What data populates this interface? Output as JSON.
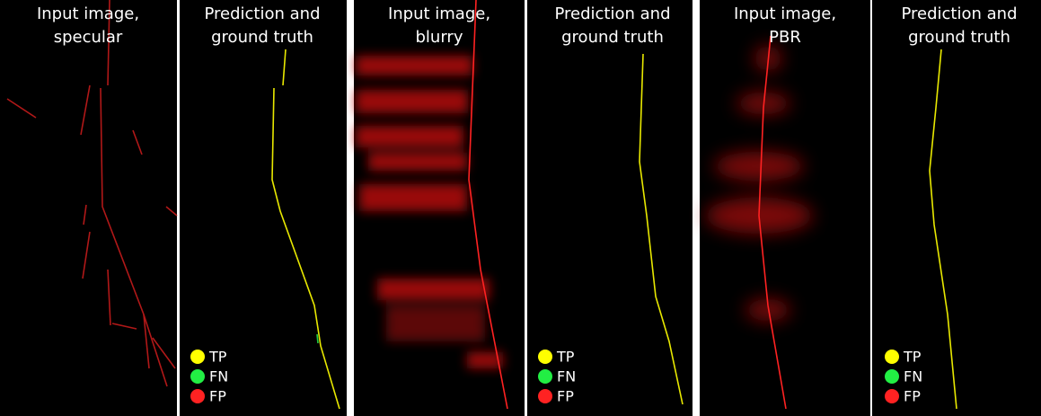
{
  "panels": [
    {
      "title": [
        "Input image,",
        "specular"
      ]
    },
    {
      "title": [
        "Prediction and",
        "ground truth"
      ]
    },
    {
      "title": [
        "Input image,",
        "blurry"
      ]
    },
    {
      "title": [
        "Prediction and",
        "ground truth"
      ]
    },
    {
      "title": [
        "Input image,",
        "PBR"
      ]
    },
    {
      "title": [
        "Prediction and",
        "ground truth"
      ]
    }
  ],
  "legend": [
    {
      "label": "TP",
      "color": "#ffff00"
    },
    {
      "label": "FN",
      "color": "#22ee44"
    },
    {
      "label": "FP",
      "color": "#ff2222"
    }
  ]
}
